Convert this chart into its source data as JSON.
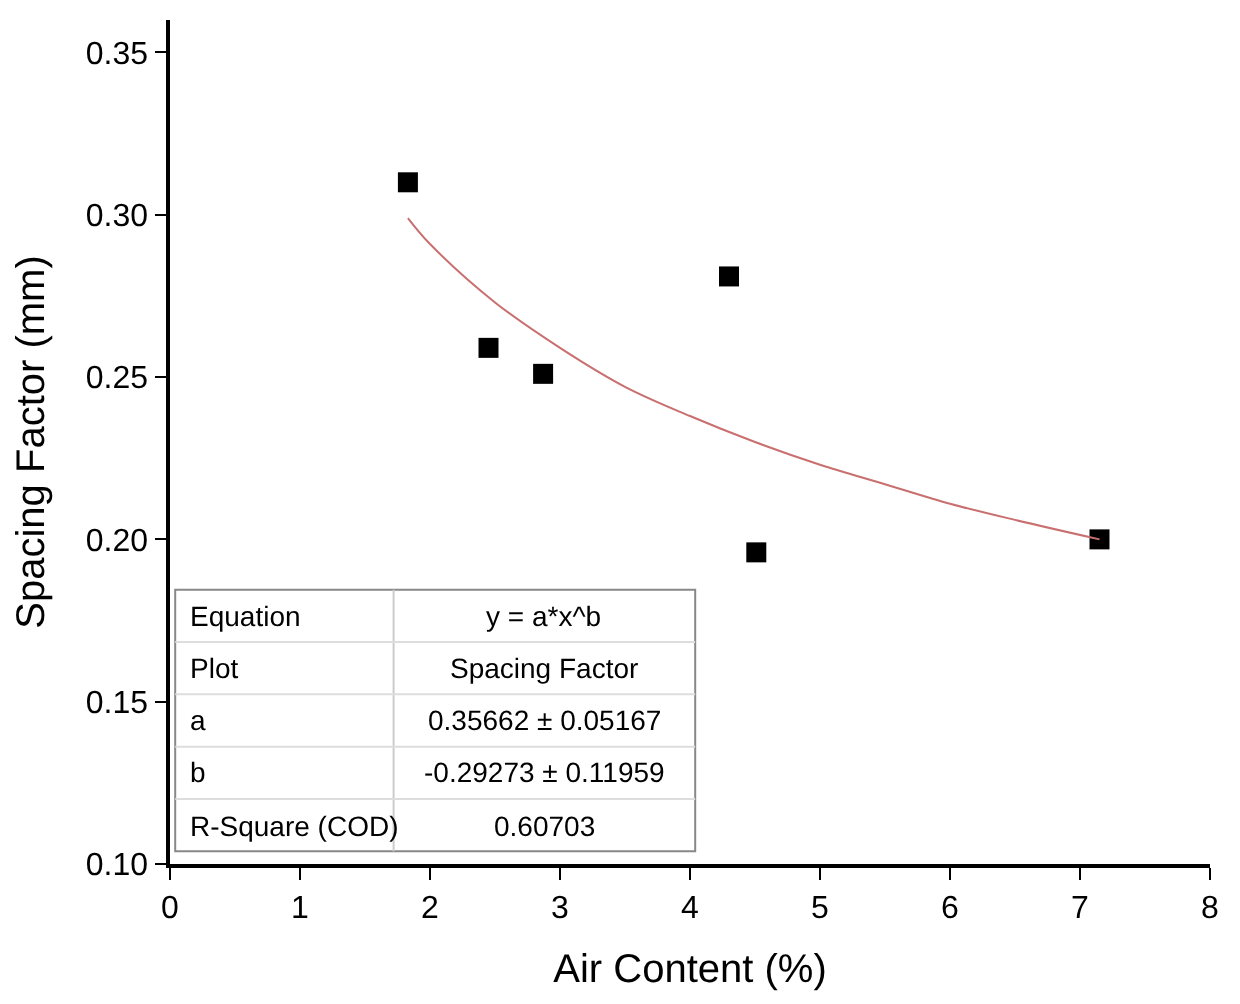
{
  "chart_data": {
    "type": "scatter",
    "xlabel": "Air Content (%)",
    "ylabel": "Spacing Factor (mm)",
    "xlim": [
      0,
      8
    ],
    "xticks": [
      0,
      1,
      2,
      3,
      4,
      5,
      6,
      7,
      8
    ],
    "ylim": [
      0.1,
      0.36
    ],
    "yticks": [
      {
        "value": 0.1,
        "label": "0.10"
      },
      0.15,
      {
        "value": 0.2,
        "label": "0.20"
      },
      0.25,
      {
        "value": 0.3,
        "label": "0.30"
      },
      0.35
    ],
    "series": [
      {
        "marker": "square",
        "color": "#000000",
        "x": [
          1.83,
          2.45,
          2.87,
          4.3,
          4.51,
          7.15
        ],
        "values": [
          0.31,
          0.259,
          0.251,
          0.281,
          0.196,
          0.2
        ]
      },
      {
        "type": "line",
        "marker": "none",
        "color": "#c96f6f",
        "line_style": "solid",
        "x": [
          1.83,
          2.0,
          2.5,
          3.0,
          3.5,
          4.0,
          4.5,
          5.0,
          5.5,
          6.0,
          6.5,
          7.15
        ],
        "values": [
          0.299,
          0.291,
          0.273,
          0.259,
          0.247,
          0.238,
          0.23,
          0.223,
          0.217,
          0.211,
          0.206,
          0.2
        ]
      }
    ],
    "annotations": [
      "Equation",
      "y = a*x^b",
      "Plot",
      "Spacing Factor",
      "a",
      "0.35662 ± 0.05167",
      "b",
      "-0.29273 ± 0.11959",
      "R-Square (COD)",
      "0.60703"
    ]
  }
}
